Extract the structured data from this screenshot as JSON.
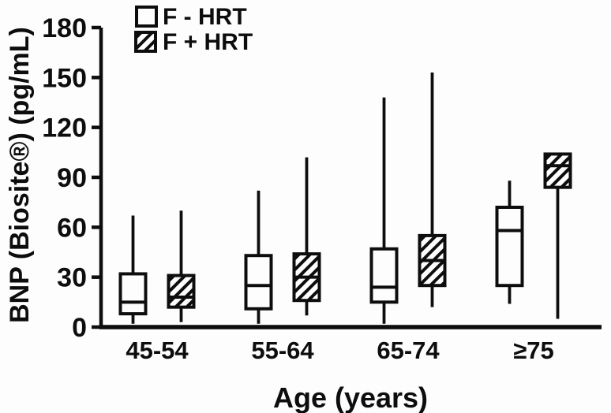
{
  "figure_title": "",
  "colors": {
    "ink": "#0d0d0d",
    "background": "#fdfdfd"
  },
  "chart_data": {
    "type": "boxplot",
    "title": "",
    "xlabel": "Age (years)",
    "ylabel": "BNP (Biosite®) (pg/mL)",
    "ylim": [
      0,
      180
    ],
    "yticks": [
      0,
      30,
      60,
      90,
      120,
      150,
      180
    ],
    "grid": false,
    "legend_position": "top-left-inside",
    "categories": [
      "45-54",
      "55-64",
      "65-74",
      "≥75"
    ],
    "series": [
      {
        "name": "F - HRT",
        "fill": "open",
        "boxes": [
          {
            "min": 2,
            "q1": 8,
            "median": 15,
            "q3": 32,
            "max": 67
          },
          {
            "min": 2,
            "q1": 11,
            "median": 25,
            "q3": 43,
            "max": 82
          },
          {
            "min": 2,
            "q1": 15,
            "median": 24,
            "q3": 47,
            "max": 138
          },
          {
            "min": 14,
            "q1": 25,
            "median": 58,
            "q3": 72,
            "max": 88
          }
        ]
      },
      {
        "name": "F + HRT",
        "fill": "hatched",
        "boxes": [
          {
            "min": 3,
            "q1": 12,
            "median": 18,
            "q3": 31,
            "max": 70
          },
          {
            "min": 7,
            "q1": 16,
            "median": 30,
            "q3": 44,
            "max": 102
          },
          {
            "min": 12,
            "q1": 25,
            "median": 40,
            "q3": 55,
            "max": 153
          },
          {
            "min": 5,
            "q1": 84,
            "median": 97,
            "q3": 104,
            "max": 104
          }
        ]
      }
    ]
  }
}
